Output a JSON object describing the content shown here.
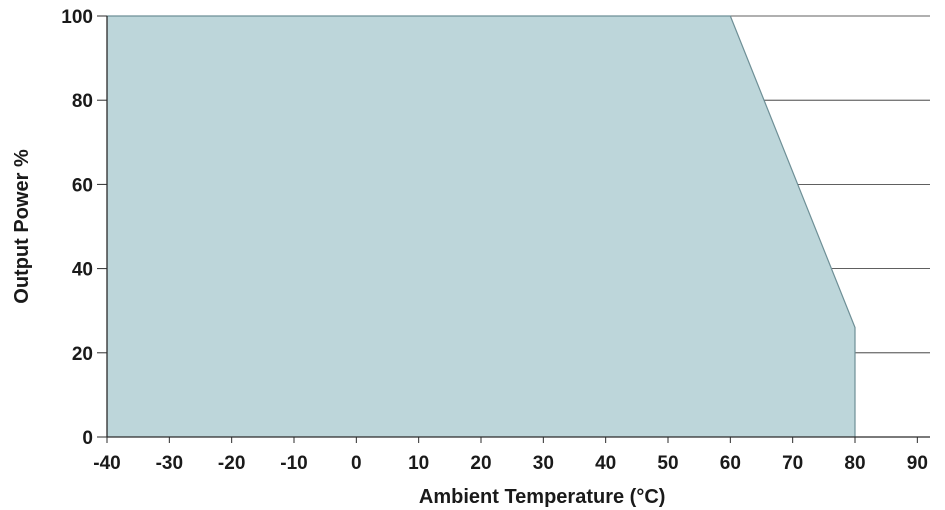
{
  "chart_data": {
    "type": "area",
    "title": "",
    "xlabel": "Ambient Temperature (°C)",
    "ylabel": "Output Power %",
    "xlim": [
      -40,
      92
    ],
    "ylim": [
      0,
      100
    ],
    "x_ticks": [
      -40,
      -30,
      -20,
      -10,
      0,
      10,
      20,
      30,
      40,
      50,
      60,
      70,
      80,
      90
    ],
    "y_ticks": [
      0,
      20,
      40,
      60,
      80,
      100
    ],
    "grid": "horizontal",
    "series": [
      {
        "x": [
          -40,
          60,
          80,
          80
        ],
        "y": [
          100,
          100,
          26,
          0
        ]
      }
    ],
    "reference_lines": [
      {
        "orientation": "vertical",
        "x": 60
      }
    ],
    "colors": {
      "fill": "#bdd6da",
      "outline": "#6e8f96",
      "grid": "#2b2b2b",
      "axis": "#2b2b2b",
      "text": "#1a1a1a"
    }
  }
}
